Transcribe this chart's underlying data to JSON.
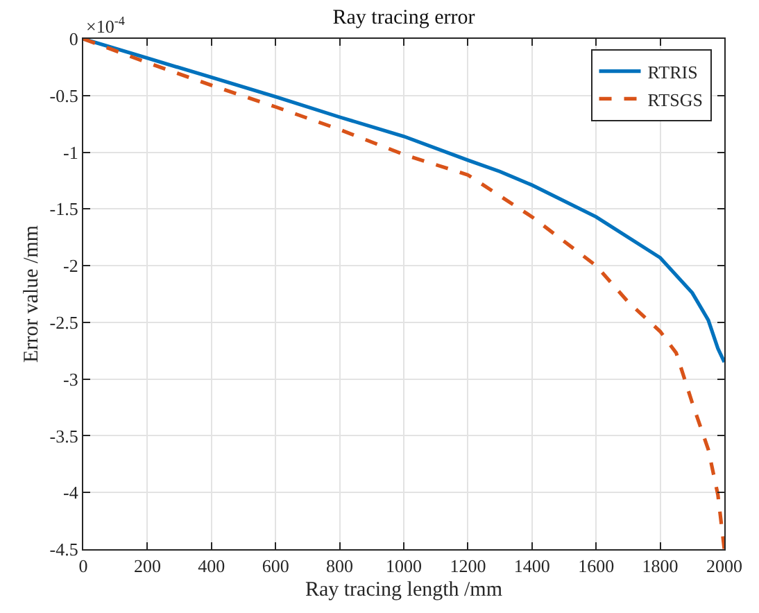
{
  "chart_data": {
    "type": "line",
    "title": "Ray tracing error",
    "xlabel": "Ray tracing length /mm",
    "ylabel": "Error value /mm",
    "annotations": [
      "×10$^{-4}$"
    ],
    "xlim": [
      0,
      2000
    ],
    "xticks": [
      0,
      200,
      400,
      600,
      800,
      1000,
      1200,
      1400,
      1600,
      1800,
      2000
    ],
    "ylim": [
      -4.5,
      0
    ],
    "yticks": [
      -4.5,
      -4,
      -3.5,
      -3,
      -2.5,
      -2,
      -1.5,
      -1,
      -0.5,
      0
    ],
    "grid": true,
    "legend": "top right",
    "marker": "none",
    "series": [
      {
        "name": "RTRIS",
        "color": "#0072bd",
        "line_style": "solid",
        "x": [
          0,
          200,
          400,
          600,
          800,
          1000,
          1200,
          1300,
          1400,
          1600,
          1800,
          1900,
          1950,
          1980,
          2000
        ],
        "values": [
          0,
          -0.17,
          -0.34,
          -0.51,
          -0.69,
          -0.86,
          -1.07,
          -1.17,
          -1.29,
          -1.57,
          -1.93,
          -2.24,
          -2.48,
          -2.73,
          -2.85
        ]
      },
      {
        "name": "RTSGS",
        "color": "#d95319",
        "line_style": "dashed",
        "x": [
          0,
          200,
          400,
          600,
          800,
          1000,
          1200,
          1400,
          1600,
          1700,
          1800,
          1850,
          1900,
          1950,
          1980,
          2000
        ],
        "values": [
          0,
          -0.21,
          -0.41,
          -0.6,
          -0.8,
          -1.02,
          -1.2,
          -1.57,
          -2.0,
          -2.32,
          -2.58,
          -2.77,
          -3.21,
          -3.62,
          -4.02,
          -4.5
        ]
      }
    ]
  }
}
